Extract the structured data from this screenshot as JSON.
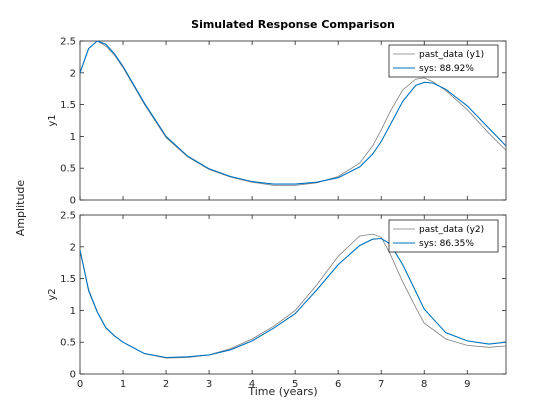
{
  "colors": {
    "measured": "#7f7f7f",
    "model": "#0072bd",
    "axes": "#262626",
    "grid_box": "#000000"
  },
  "chart_data": {
    "type": "line",
    "title": "Simulated Response Comparison",
    "xlabel": "Time (years)",
    "ylabel": "Amplitude",
    "xlim": [
      0,
      9.9
    ],
    "x_ticks": [
      0,
      1,
      2,
      3,
      4,
      5,
      6,
      7,
      8,
      9
    ],
    "x_tick_labels": [
      "0",
      "1",
      "2",
      "3",
      "4",
      "5",
      "6",
      "7",
      "8",
      "9"
    ],
    "y_ticks": [
      0,
      0.5,
      1,
      1.5,
      2,
      2.5
    ],
    "y_tick_labels": [
      "0",
      "0.5",
      "1",
      "1.5",
      "2",
      "2.5"
    ],
    "grid": false,
    "legend_placement": "top-right",
    "panels": [
      {
        "ylabel": "y1",
        "ylim": [
          0,
          2.5
        ],
        "series": [
          {
            "name": "past_data (y1)",
            "role": "measured",
            "x": [
              0,
              0.2,
              0.4,
              0.6,
              0.8,
              1.0,
              1.2,
              1.5,
              2.0,
              2.5,
              3.0,
              3.5,
              4.0,
              4.5,
              5.0,
              5.5,
              6.0,
              6.5,
              6.8,
              7.0,
              7.2,
              7.5,
              7.8,
              8.0,
              8.2,
              8.5,
              9.0,
              9.5,
              9.9
            ],
            "y": [
              2.0,
              2.38,
              2.5,
              2.42,
              2.28,
              2.08,
              1.85,
              1.5,
              0.98,
              0.68,
              0.48,
              0.36,
              0.28,
              0.23,
              0.23,
              0.27,
              0.37,
              0.58,
              0.85,
              1.1,
              1.38,
              1.73,
              1.9,
              1.92,
              1.86,
              1.72,
              1.42,
              1.05,
              0.78
            ]
          },
          {
            "name": "sys: 88.92%",
            "role": "model",
            "x": [
              0,
              0.2,
              0.4,
              0.6,
              0.8,
              1.0,
              1.2,
              1.5,
              2.0,
              2.5,
              3.0,
              3.5,
              4.0,
              4.5,
              5.0,
              5.5,
              6.0,
              6.5,
              6.8,
              7.0,
              7.2,
              7.5,
              7.8,
              8.0,
              8.2,
              8.5,
              9.0,
              9.5,
              9.9
            ],
            "y": [
              2.0,
              2.38,
              2.5,
              2.45,
              2.3,
              2.1,
              1.87,
              1.52,
              1.0,
              0.69,
              0.49,
              0.37,
              0.29,
              0.25,
              0.25,
              0.28,
              0.35,
              0.52,
              0.72,
              0.92,
              1.17,
              1.55,
              1.8,
              1.85,
              1.84,
              1.74,
              1.48,
              1.13,
              0.85
            ]
          }
        ]
      },
      {
        "ylabel": "y2",
        "ylim": [
          0,
          2.5
        ],
        "series": [
          {
            "name": "past_data (y2)",
            "role": "measured",
            "x": [
              0,
              0.2,
              0.4,
              0.6,
              0.8,
              1.0,
              1.5,
              2.0,
              2.5,
              3.0,
              3.5,
              4.0,
              4.5,
              5.0,
              5.5,
              6.0,
              6.5,
              6.8,
              7.0,
              7.2,
              7.5,
              7.8,
              8.0,
              8.5,
              9.0,
              9.5,
              9.9
            ],
            "y": [
              1.95,
              1.3,
              0.97,
              0.72,
              0.6,
              0.5,
              0.32,
              0.25,
              0.26,
              0.3,
              0.4,
              0.55,
              0.75,
              1.0,
              1.4,
              1.85,
              2.17,
              2.2,
              2.15,
              1.9,
              1.45,
              1.05,
              0.8,
              0.55,
              0.45,
              0.42,
              0.44
            ]
          },
          {
            "name": "sys: 86.35%",
            "role": "model",
            "x": [
              0,
              0.2,
              0.4,
              0.6,
              0.8,
              1.0,
              1.5,
              2.0,
              2.5,
              3.0,
              3.5,
              4.0,
              4.5,
              5.0,
              5.5,
              6.0,
              6.5,
              6.8,
              7.0,
              7.2,
              7.5,
              7.8,
              8.0,
              8.5,
              9.0,
              9.5,
              9.9
            ],
            "y": [
              1.95,
              1.32,
              0.98,
              0.73,
              0.6,
              0.5,
              0.32,
              0.26,
              0.27,
              0.3,
              0.38,
              0.52,
              0.72,
              0.95,
              1.32,
              1.72,
              2.02,
              2.12,
              2.13,
              2.05,
              1.72,
              1.3,
              1.02,
              0.65,
              0.52,
              0.47,
              0.5
            ]
          }
        ]
      }
    ]
  }
}
